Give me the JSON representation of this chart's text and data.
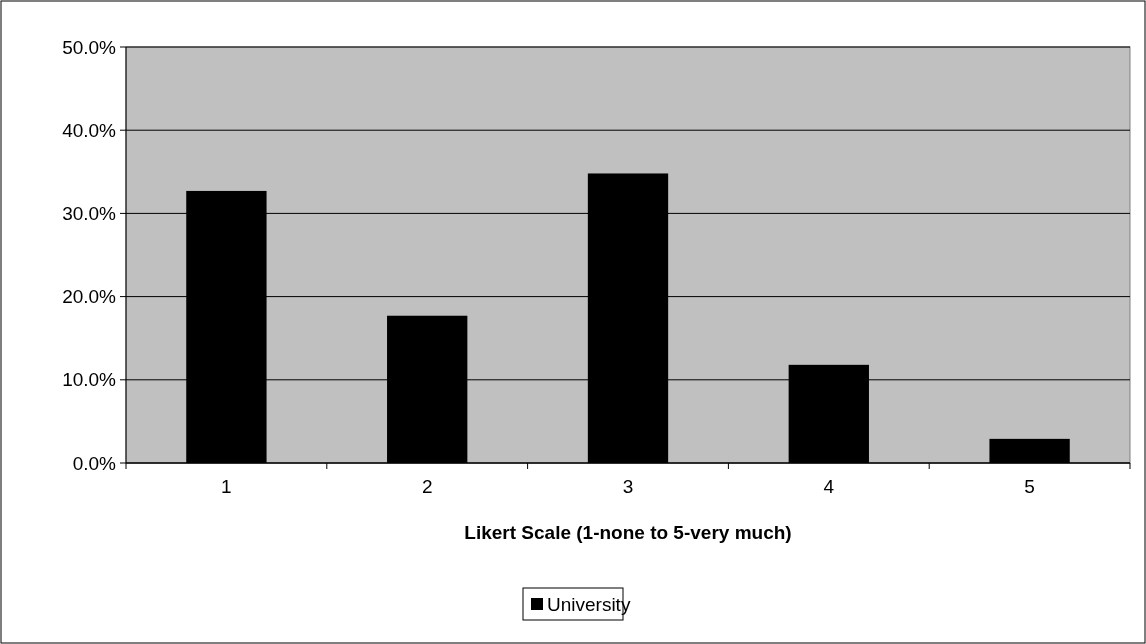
{
  "chart_data": {
    "type": "bar",
    "xlabel": "Likert Scale (1-none to 5-very much)",
    "categories": [
      "1",
      "2",
      "3",
      "4",
      "5"
    ],
    "series": [
      {
        "name": "University",
        "color": "#000000",
        "values": [
          32.7,
          17.7,
          34.8,
          11.8,
          2.9
        ]
      }
    ],
    "ylim": [
      0,
      50
    ],
    "yticks": [
      {
        "value": 0,
        "label": "0.0%"
      },
      {
        "value": 10,
        "label": "10.0%"
      },
      {
        "value": 20,
        "label": "20.0%"
      },
      {
        "value": 30,
        "label": "30.0%"
      },
      {
        "value": 40,
        "label": "40.0%"
      },
      {
        "value": 50,
        "label": "50.0%"
      }
    ],
    "grid": "y",
    "legend": "bottom"
  }
}
